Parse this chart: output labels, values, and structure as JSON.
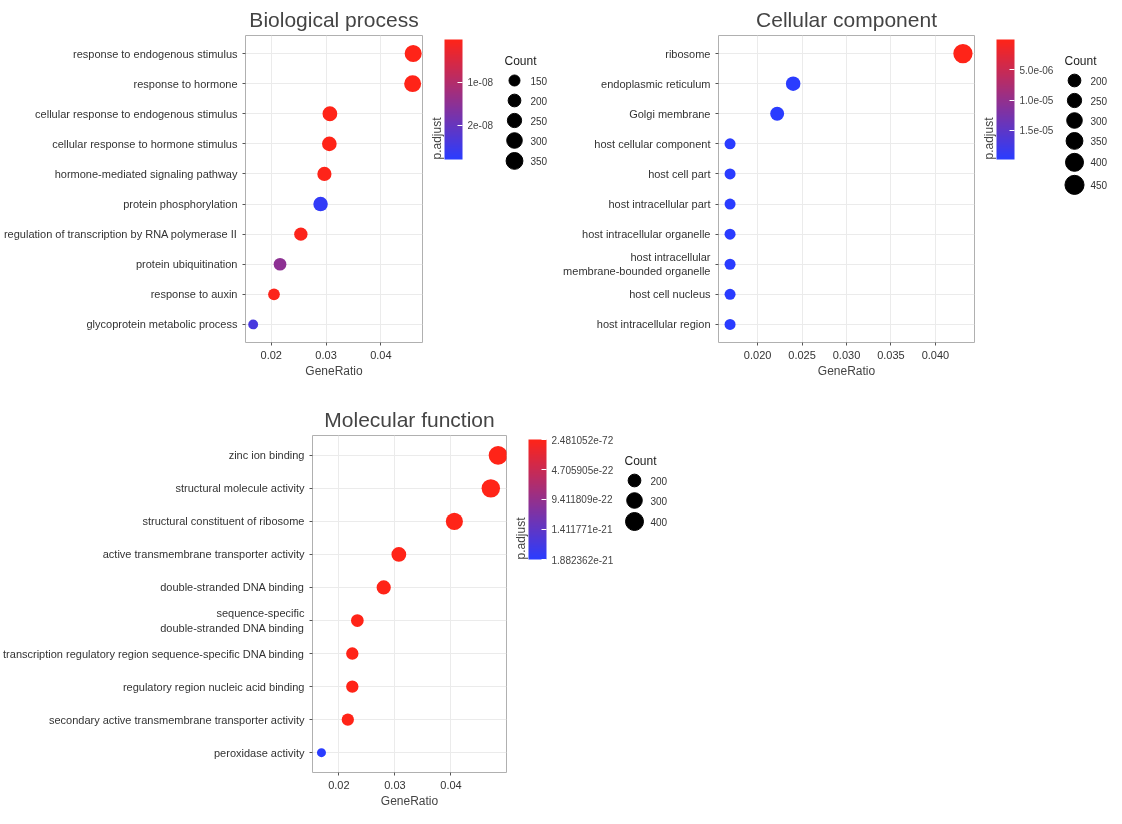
{
  "chart_data": [
    {
      "type": "bubble",
      "title": "Biological process",
      "xlabel": "GeneRatio",
      "legend_title": "Count",
      "clabel": "p.adjust",
      "orientation": "horizontal",
      "marker": "circle",
      "grid": true,
      "categories": [
        "response to endogenous stimulus",
        "response to hormone",
        "cellular response to endogenous stimulus",
        "cellular response to hormone stimulus",
        "hormone-mediated signaling pathway",
        "protein phosphorylation",
        "regulation of transcription by RNA polymerase II",
        "protein ubiquitination",
        "response to auxin",
        "glycoprotein metabolic process"
      ],
      "values": [
        0.0459,
        0.0458,
        0.0307,
        0.0306,
        0.0297,
        0.029,
        0.0254,
        0.0216,
        0.0205,
        0.0167
      ],
      "sizes": [
        360,
        355,
        270,
        265,
        250,
        260,
        220,
        200,
        170,
        120
      ],
      "cvalues": [
        1e-10,
        1e-10,
        2e-10,
        2e-10,
        3e-10,
        2.7e-08,
        5e-10,
        1.5e-08,
        5e-10,
        2.4e-08
      ],
      "size_legend": [
        150,
        200,
        250,
        300,
        350
      ],
      "clim": [
        1e-10,
        2.8e-08
      ],
      "cticks": [
        {
          "value": 1e-08,
          "label": "1e-08"
        },
        {
          "value": 2e-08,
          "label": "2e-08"
        }
      ],
      "xlim": [
        0.0153,
        0.0476
      ],
      "xticks": [
        0.02,
        0.03,
        0.04
      ]
    },
    {
      "type": "bubble",
      "title": "Cellular component",
      "xlabel": "GeneRatio",
      "legend_title": "Count",
      "clabel": "p.adjust",
      "orientation": "horizontal",
      "marker": "circle",
      "grid": true,
      "categories": [
        "ribosome",
        "endoplasmic reticulum",
        "Golgi membrane",
        "host cellular component",
        "host cell part",
        "host intracellular part",
        "host intracellular organelle",
        "host intracellular\nmembrane-bounded organelle",
        "host cell nucleus",
        "host intracellular region"
      ],
      "values": [
        0.0431,
        0.024,
        0.0222,
        0.0169,
        0.0169,
        0.0169,
        0.0169,
        0.0169,
        0.0169,
        0.0169
      ],
      "sizes": [
        460,
        260,
        240,
        150,
        150,
        150,
        150,
        150,
        150,
        150
      ],
      "cvalues": [
        1e-10,
        1.98e-05,
        1.98e-05,
        1.98e-05,
        1.98e-05,
        1.98e-05,
        1.98e-05,
        1.98e-05,
        1.98e-05,
        1.98e-05
      ],
      "size_legend": [
        200,
        250,
        300,
        350,
        400,
        450
      ],
      "clim": [
        1e-10,
        1.98e-05
      ],
      "cticks": [
        {
          "value": 5e-06,
          "label": "5.0e-06"
        },
        {
          "value": 1e-05,
          "label": "1.0e-05"
        },
        {
          "value": 1.5e-05,
          "label": "1.5e-05"
        }
      ],
      "xlim": [
        0.0156,
        0.0444
      ],
      "xticks": [
        {
          "value": 0.02,
          "label": "0.020"
        },
        0.025,
        {
          "value": 0.03,
          "label": "0.030"
        },
        0.035,
        {
          "value": 0.04,
          "label": "0.040"
        }
      ]
    },
    {
      "type": "bubble",
      "title": "Molecular function",
      "xlabel": "GeneRatio",
      "legend_title": "Count",
      "clabel": "p.adjust",
      "orientation": "horizontal",
      "marker": "circle",
      "grid": true,
      "categories": [
        "zinc ion binding",
        "structural molecule activity",
        "structural constituent of ribosome",
        "active transmembrane transporter activity",
        "double-stranded DNA binding",
        "sequence-specific\ndouble-stranded DNA binding",
        "transcription regulatory region sequence-specific DNA binding",
        "regulatory region nucleic acid binding",
        "secondary active transmembrane transporter activity",
        "peroxidase activity"
      ],
      "values": [
        0.0484,
        0.0471,
        0.0406,
        0.0307,
        0.028,
        0.0233,
        0.0224,
        0.0224,
        0.0216,
        0.0169
      ],
      "sizes": [
        440,
        420,
        360,
        270,
        250,
        200,
        190,
        190,
        185,
        100
      ],
      "cvalues": [
        2.481052e-72,
        2.481052e-72,
        2.481052e-72,
        2.481052e-72,
        2.481052e-72,
        2.481052e-72,
        2.481052e-72,
        2.481052e-72,
        2.481052e-72,
        1.882362e-21
      ],
      "size_legend": [
        200,
        300,
        400
      ],
      "clim": [
        2.481052e-72,
        1.882362e-21
      ],
      "cticks": [
        {
          "value": 2.481052e-72,
          "label": "2.481052e-72"
        },
        {
          "value": 4.705905e-22,
          "label": "4.705905e-22"
        },
        {
          "value": 9.411809e-22,
          "label": "9.411809e-22"
        },
        {
          "value": 1.411771e-21,
          "label": "1.411771e-21"
        },
        {
          "value": 1.882362e-21,
          "label": "1.882362e-21"
        }
      ],
      "xlim": [
        0.0153,
        0.0499
      ],
      "xticks": [
        0.02,
        0.03,
        0.04
      ]
    }
  ]
}
